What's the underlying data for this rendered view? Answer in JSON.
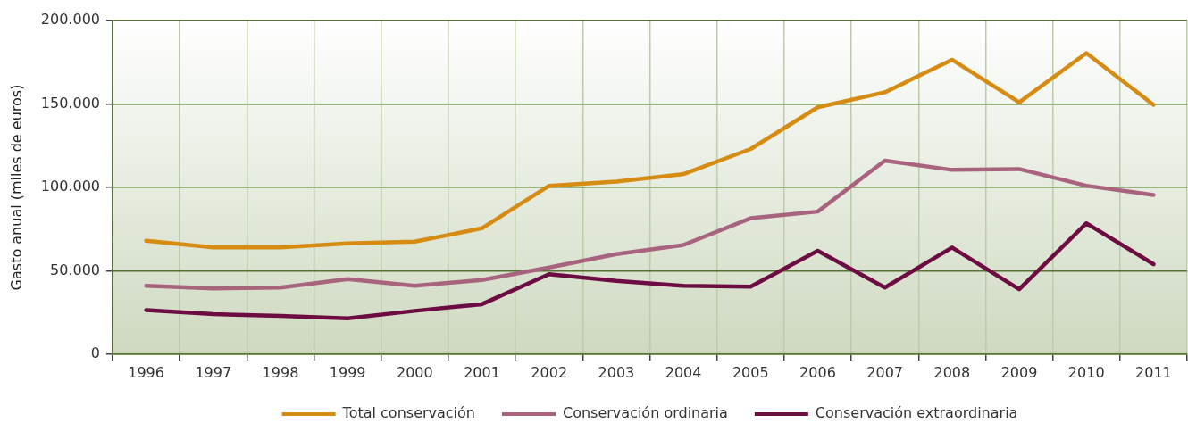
{
  "chart_data": {
    "type": "line",
    "ylabel": "Gasto anual (miles de euros)",
    "categories": [
      "1996",
      "1997",
      "1998",
      "1999",
      "2000",
      "2001",
      "2002",
      "2003",
      "2004",
      "2005",
      "2006",
      "2007",
      "2008",
      "2009",
      "2010",
      "2011"
    ],
    "series": [
      {
        "name": "Total conservación",
        "color": "#d68b12",
        "values": [
          68000,
          64000,
          64000,
          66500,
          67500,
          75500,
          101000,
          103500,
          108000,
          123000,
          148000,
          157000,
          176500,
          151000,
          180500,
          149500
        ]
      },
      {
        "name": "Conservación ordinaria",
        "color": "#a8637f",
        "values": [
          41000,
          39500,
          40000,
          45000,
          41000,
          44500,
          52000,
          60000,
          65500,
          81500,
          85500,
          116000,
          110500,
          111000,
          101000,
          95500
        ]
      },
      {
        "name": "Conservación extraordinaria",
        "color": "#6d0c43",
        "values": [
          26500,
          24000,
          23000,
          21500,
          26000,
          30000,
          48000,
          44000,
          41000,
          40500,
          62000,
          40000,
          64000,
          39000,
          78500,
          54000
        ]
      }
    ],
    "ylim": [
      0,
      200000
    ],
    "yticks": [
      0,
      {
        "value": 50000,
        "label": "50.000"
      },
      {
        "value": 100000,
        "label": "100.000"
      },
      {
        "value": 150000,
        "label": "150.000"
      },
      {
        "value": 200000,
        "label": "200.000"
      }
    ],
    "grid": true,
    "legend": "bottom",
    "marker": "none",
    "line_style": "solid"
  }
}
